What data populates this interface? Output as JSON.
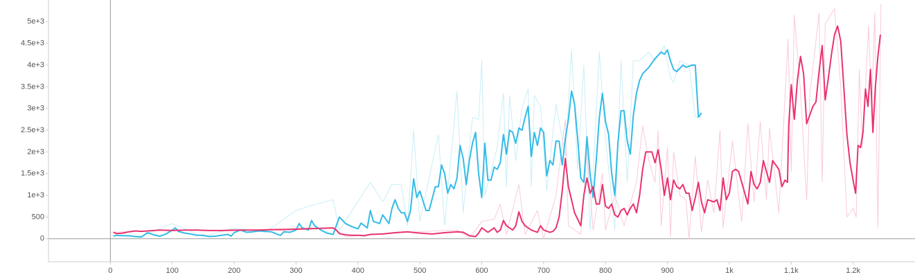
{
  "chart_data": {
    "type": "line",
    "xlim": [
      -100,
      1300
    ],
    "xticks": [
      0,
      100,
      200,
      300,
      400,
      500,
      600,
      700,
      800,
      900,
      {
        "value": 1000,
        "label": "1k"
      },
      {
        "value": 1100,
        "label": "1.1k"
      },
      {
        "value": 1200,
        "label": "1.2k"
      }
    ],
    "ylim": [
      -530,
      5500
    ],
    "yticks": [
      0,
      500,
      {
        "value": 1000,
        "label": "1e+3"
      },
      {
        "value": 1500,
        "label": "1.5e+3"
      },
      {
        "value": 2000,
        "label": "2e+3"
      },
      {
        "value": 2500,
        "label": "2.5e+3"
      },
      {
        "value": 3000,
        "label": "3e+3"
      },
      {
        "value": 3500,
        "label": "3.5e+3"
      },
      {
        "value": 4000,
        "label": "4e+3"
      },
      {
        "value": 4500,
        "label": "4.5e+3"
      },
      {
        "value": 5000,
        "label": "5e+3"
      }
    ],
    "series": [
      {
        "color": "#c8eef7",
        "width": 1,
        "x": [
          0,
          50,
          100,
          150,
          200,
          250,
          300,
          320,
          360,
          370,
          420,
          440,
          455,
          470,
          480,
          490,
          500,
          530,
          540,
          560,
          570,
          585,
          595,
          600,
          605,
          625,
          635,
          640,
          645,
          655,
          665,
          675,
          680,
          685,
          695,
          705,
          720,
          735,
          745,
          755,
          765,
          775,
          790,
          800,
          815,
          825,
          835,
          845,
          855,
          870,
          880,
          895,
          905,
          910,
          920,
          935,
          945,
          955
        ],
        "values": [
          80,
          60,
          350,
          50,
          250,
          150,
          650,
          750,
          900,
          200,
          1300,
          850,
          1250,
          1250,
          300,
          2500,
          400,
          2400,
          300,
          3400,
          600,
          2800,
          2750,
          4100,
          1000,
          2100,
          3350,
          1200,
          3300,
          1800,
          3000,
          3450,
          1200,
          3300,
          3050,
          1100,
          3100,
          1900,
          4350,
          1600,
          4000,
          200,
          4300,
          2300,
          200,
          4100,
          1300,
          4100,
          4100,
          4300,
          4100,
          4450,
          3700,
          3600,
          4100,
          4000,
          2800,
          2800
        ]
      },
      {
        "color": "#f9cada",
        "width": 1,
        "x": [
          0,
          100,
          200,
          300,
          360,
          380,
          480,
          560,
          580,
          590,
          600,
          620,
          630,
          640,
          660,
          670,
          690,
          700,
          720,
          735,
          740,
          760,
          770,
          780,
          795,
          800,
          815,
          830,
          850,
          860,
          870,
          880,
          885,
          890,
          900,
          905,
          910,
          920,
          930,
          935,
          945,
          955,
          965,
          975,
          985,
          990,
          1005,
          1020,
          1030,
          1040,
          1050,
          1060,
          1065,
          1080,
          1095,
          1100,
          1105,
          1115,
          1125,
          1130,
          1145,
          1150,
          1155,
          1170,
          1180,
          1190,
          1200,
          1205,
          1210,
          1215,
          1225,
          1230,
          1235,
          1240,
          1245
        ],
        "values": [
          150,
          200,
          180,
          250,
          250,
          50,
          150,
          200,
          20,
          200,
          400,
          450,
          800,
          100,
          1250,
          100,
          650,
          0,
          1000,
          2750,
          300,
          100,
          2000,
          200,
          1500,
          200,
          1000,
          300,
          1300,
          2600,
          1800,
          1300,
          2500,
          300,
          2100,
          50,
          2000,
          1000,
          900,
          0,
          1900,
          150,
          1350,
          600,
          2500,
          250,
          2250,
          400,
          2650,
          850,
          2700,
          900,
          2550,
          600,
          4600,
          1550,
          5150,
          3400,
          900,
          3300,
          5200,
          1300,
          4950,
          5300,
          3500,
          500,
          700,
          500,
          3900,
          2100,
          4900,
          3000,
          5200,
          250,
          5400
        ]
      },
      {
        "color": "#33bbe6",
        "width": 2,
        "x": [
          5,
          10,
          20,
          30,
          40,
          50,
          60,
          70,
          80,
          90,
          100,
          105,
          110,
          120,
          130,
          140,
          150,
          160,
          170,
          180,
          190,
          195,
          200,
          210,
          220,
          230,
          240,
          250,
          260,
          270,
          275,
          280,
          290,
          300,
          305,
          310,
          320,
          325,
          330,
          340,
          350,
          360,
          370,
          380,
          390,
          400,
          405,
          415,
          420,
          425,
          435,
          440,
          445,
          450,
          455,
          460,
          465,
          470,
          475,
          480,
          485,
          490,
          495,
          500,
          510,
          515,
          525,
          530,
          535,
          540,
          545,
          550,
          555,
          560,
          565,
          570,
          575,
          580,
          585,
          590,
          595,
          600,
          605,
          610,
          615,
          620,
          625,
          630,
          635,
          640,
          645,
          650,
          655,
          660,
          665,
          670,
          675,
          680,
          685,
          690,
          695,
          700,
          705,
          710,
          715,
          720,
          725,
          730,
          735,
          740,
          745,
          750,
          755,
          760,
          765,
          770,
          775,
          780,
          785,
          790,
          795,
          800,
          805,
          810,
          815,
          820,
          825,
          830,
          835,
          840,
          845,
          850,
          855,
          860,
          870,
          880,
          890,
          895,
          900,
          905,
          910,
          915,
          925,
          930,
          940,
          945,
          950,
          955
        ],
        "values": [
          60,
          80,
          70,
          70,
          50,
          40,
          140,
          90,
          60,
          110,
          200,
          250,
          170,
          130,
          110,
          80,
          80,
          50,
          60,
          80,
          100,
          60,
          140,
          200,
          150,
          160,
          180,
          170,
          160,
          100,
          80,
          160,
          150,
          200,
          350,
          250,
          200,
          420,
          300,
          200,
          130,
          100,
          500,
          350,
          280,
          230,
          360,
          250,
          650,
          400,
          350,
          550,
          450,
          350,
          700,
          900,
          700,
          600,
          600,
          400,
          650,
          1380,
          950,
          1100,
          650,
          650,
          1200,
          1200,
          1700,
          1500,
          1050,
          1250,
          1150,
          1400,
          2150,
          1850,
          1250,
          1800,
          2200,
          2450,
          1500,
          950,
          2200,
          1350,
          1350,
          1650,
          1600,
          1750,
          2400,
          1950,
          2500,
          2450,
          2200,
          2550,
          2500,
          2800,
          3050,
          1900,
          2450,
          2150,
          2550,
          2450,
          1450,
          1800,
          1700,
          2250,
          2250,
          1700,
          2300,
          2750,
          3400,
          3100,
          2300,
          1400,
          1300,
          2350,
          1500,
          950,
          1800,
          2800,
          3350,
          2700,
          2400,
          1500,
          1000,
          2200,
          2950,
          2950,
          2250,
          1950,
          2850,
          3350,
          3650,
          3800,
          3950,
          4150,
          4300,
          4250,
          4350,
          4100,
          3900,
          3850,
          4000,
          3950,
          4000,
          4000,
          2800,
          2900
        ]
      },
      {
        "color": "#e8336d",
        "width": 2,
        "x": [
          5,
          10,
          20,
          30,
          40,
          50,
          60,
          80,
          100,
          120,
          140,
          160,
          180,
          200,
          220,
          240,
          260,
          280,
          300,
          320,
          340,
          360,
          365,
          370,
          380,
          390,
          400,
          410,
          420,
          440,
          460,
          480,
          500,
          520,
          540,
          560,
          570,
          580,
          590,
          595,
          600,
          605,
          610,
          620,
          625,
          630,
          635,
          640,
          650,
          655,
          660,
          665,
          670,
          680,
          690,
          695,
          700,
          710,
          715,
          720,
          725,
          730,
          735,
          740,
          745,
          750,
          755,
          760,
          765,
          770,
          775,
          780,
          785,
          790,
          795,
          800,
          805,
          810,
          815,
          820,
          825,
          830,
          835,
          840,
          845,
          850,
          855,
          860,
          865,
          875,
          880,
          885,
          890,
          895,
          900,
          905,
          910,
          915,
          920,
          925,
          930,
          935,
          940,
          945,
          950,
          955,
          960,
          965,
          975,
          980,
          985,
          990,
          995,
          1000,
          1005,
          1010,
          1015,
          1020,
          1030,
          1035,
          1040,
          1045,
          1050,
          1055,
          1060,
          1065,
          1070,
          1075,
          1080,
          1085,
          1090,
          1094,
          1096,
          1100,
          1105,
          1110,
          1115,
          1120,
          1125,
          1130,
          1135,
          1140,
          1145,
          1150,
          1155,
          1160,
          1165,
          1170,
          1175,
          1180,
          1185,
          1190,
          1195,
          1200,
          1204,
          1208,
          1212,
          1216,
          1220,
          1224,
          1228,
          1232,
          1236,
          1240,
          1244
        ],
        "values": [
          150,
          120,
          130,
          160,
          180,
          170,
          180,
          200,
          190,
          200,
          200,
          190,
          190,
          200,
          200,
          200,
          210,
          210,
          220,
          230,
          240,
          250,
          200,
          120,
          90,
          80,
          80,
          70,
          100,
          110,
          140,
          160,
          130,
          110,
          140,
          160,
          150,
          70,
          50,
          130,
          250,
          200,
          150,
          250,
          150,
          200,
          420,
          300,
          200,
          300,
          620,
          400,
          300,
          200,
          150,
          300,
          200,
          150,
          170,
          250,
          500,
          1100,
          1850,
          1200,
          900,
          600,
          450,
          300,
          1000,
          1400,
          1050,
          1200,
          800,
          800,
          1250,
          750,
          700,
          800,
          550,
          500,
          650,
          700,
          550,
          700,
          800,
          600,
          1000,
          1600,
          2000,
          2000,
          1750,
          2050,
          1600,
          1000,
          1400,
          900,
          1350,
          1200,
          1150,
          1250,
          1050,
          1050,
          650,
          950,
          1300,
          850,
          600,
          900,
          850,
          900,
          650,
          1400,
          900,
          1050,
          1550,
          1600,
          1550,
          1300,
          800,
          1550,
          1250,
          1150,
          1300,
          1800,
          1550,
          1300,
          1800,
          1700,
          1600,
          1200,
          1350,
          1300,
          2600,
          3550,
          2750,
          3650,
          4200,
          3800,
          2650,
          2850,
          3050,
          3150,
          3850,
          4450,
          3200,
          3700,
          4250,
          4700,
          4900,
          4550,
          3500,
          2400,
          1750,
          1350,
          1050,
          2150,
          2100,
          2450,
          3450,
          3050,
          3900,
          2450,
          3500,
          4200,
          4700
        ]
      }
    ]
  }
}
